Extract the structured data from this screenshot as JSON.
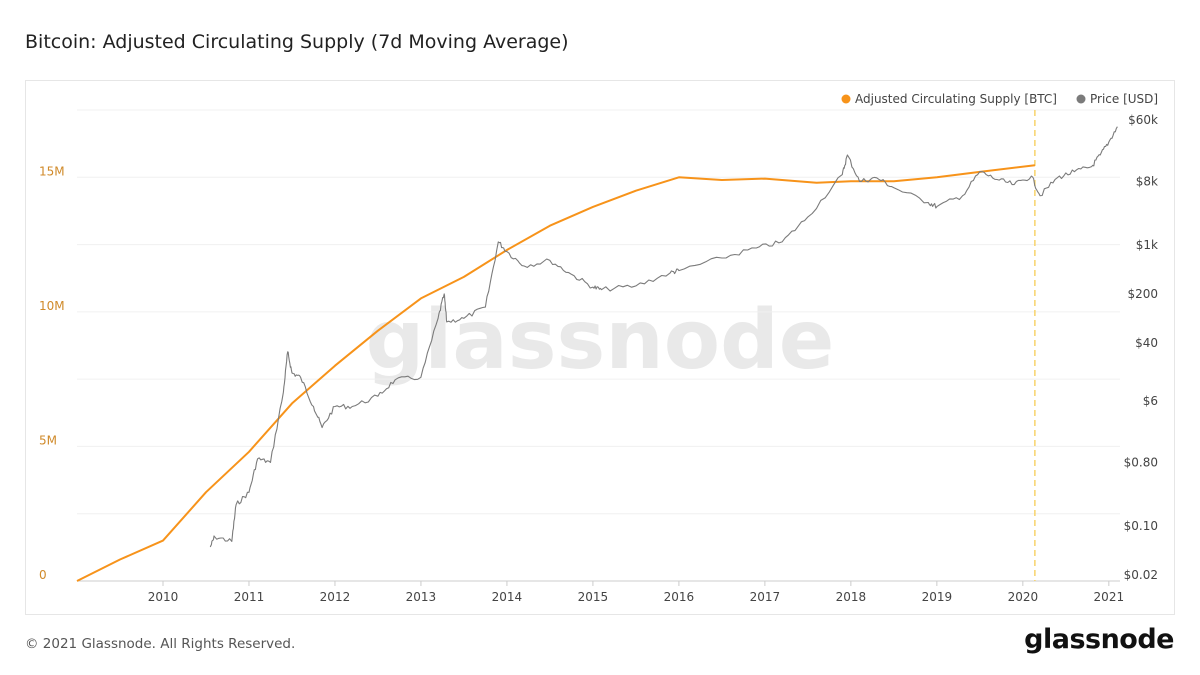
{
  "chart_data": {
    "type": "line",
    "title": "Bitcoin: Adjusted Circulating Supply (7d Moving Average)",
    "legend_placement": "top-right",
    "grid": true,
    "x_ticks": [
      "2010",
      "2011",
      "2012",
      "2013",
      "2014",
      "2015",
      "2016",
      "2017",
      "2018",
      "2019",
      "2020",
      "2021"
    ],
    "xlim": [
      2009.0,
      2021.13
    ],
    "left_axis": {
      "ticks": [
        "0",
        "5M",
        "10M",
        "15M"
      ],
      "tick_values": [
        0,
        5,
        10,
        15
      ],
      "unit": "M BTC",
      "ylim": [
        0,
        17.5
      ],
      "color": "#d08a2a"
    },
    "right_axis": {
      "scale": "log",
      "ticks": [
        "$0.02",
        "$0.10",
        "$0.80",
        "$6",
        "$40",
        "$200",
        "$1k",
        "$8k",
        "$60k"
      ],
      "tick_values": [
        0.02,
        0.1,
        0.8,
        6,
        40,
        200,
        1000,
        8000,
        60000
      ],
      "ylim": [
        0.0164,
        83000
      ]
    },
    "marker_line": {
      "x": 2020.14,
      "color": "#f7d36b",
      "style": "dashed"
    },
    "series": [
      {
        "name": "Adjusted Circulating Supply [BTC]",
        "axis": "left",
        "color": "#f7931a",
        "x": [
          2009.0,
          2009.5,
          2010.0,
          2010.5,
          2011.0,
          2011.5,
          2012.0,
          2012.5,
          2013.0,
          2013.5,
          2014.0,
          2014.5,
          2015.0,
          2015.5,
          2016.0,
          2016.5,
          2017.0,
          2017.6,
          2018.0,
          2018.5,
          2019.0,
          2019.5,
          2020.14
        ],
        "values": [
          0,
          0.8,
          1.5,
          3.3,
          4.8,
          6.6,
          8.0,
          9.3,
          10.5,
          11.3,
          12.3,
          13.2,
          13.9,
          14.5,
          15.0,
          14.9,
          14.95,
          14.8,
          14.85,
          14.85,
          15.0,
          15.2,
          15.45
        ]
      },
      {
        "name": "Price [USD]",
        "axis": "right",
        "color": "#7b7b7b",
        "x": [
          2010.55,
          2010.6,
          2010.8,
          2010.85,
          2011.0,
          2011.1,
          2011.25,
          2011.4,
          2011.45,
          2011.5,
          2011.6,
          2011.75,
          2011.85,
          2012.0,
          2012.2,
          2012.5,
          2012.7,
          2013.0,
          2013.2,
          2013.27,
          2013.3,
          2013.5,
          2013.75,
          2013.9,
          2014.0,
          2014.2,
          2014.5,
          2014.75,
          2015.0,
          2015.1,
          2015.5,
          2015.9,
          2016.0,
          2016.5,
          2016.9,
          2017.2,
          2017.5,
          2017.9,
          2017.96,
          2018.1,
          2018.3,
          2018.5,
          2018.9,
          2019.0,
          2019.3,
          2019.5,
          2019.7,
          2019.9,
          2020.1,
          2020.2,
          2020.4,
          2020.6,
          2020.8,
          2020.9,
          2021.0,
          2021.1
        ],
        "values": [
          0.05,
          0.07,
          0.06,
          0.2,
          0.3,
          0.9,
          0.8,
          8,
          30,
          15,
          13,
          5,
          2.5,
          5,
          5,
          7,
          12,
          13,
          90,
          200,
          80,
          90,
          130,
          1100,
          800,
          500,
          600,
          380,
          250,
          230,
          260,
          400,
          430,
          650,
          900,
          1100,
          2500,
          10000,
          19000,
          8000,
          9000,
          6500,
          4000,
          3500,
          5000,
          11000,
          8500,
          7200,
          9500,
          5000,
          9000,
          11000,
          13000,
          19000,
          29000,
          48000
        ]
      }
    ]
  },
  "footer": {
    "copyright": "© 2021 Glassnode. All Rights Reserved.",
    "logo": "glassnode",
    "watermark": "glassnode"
  }
}
